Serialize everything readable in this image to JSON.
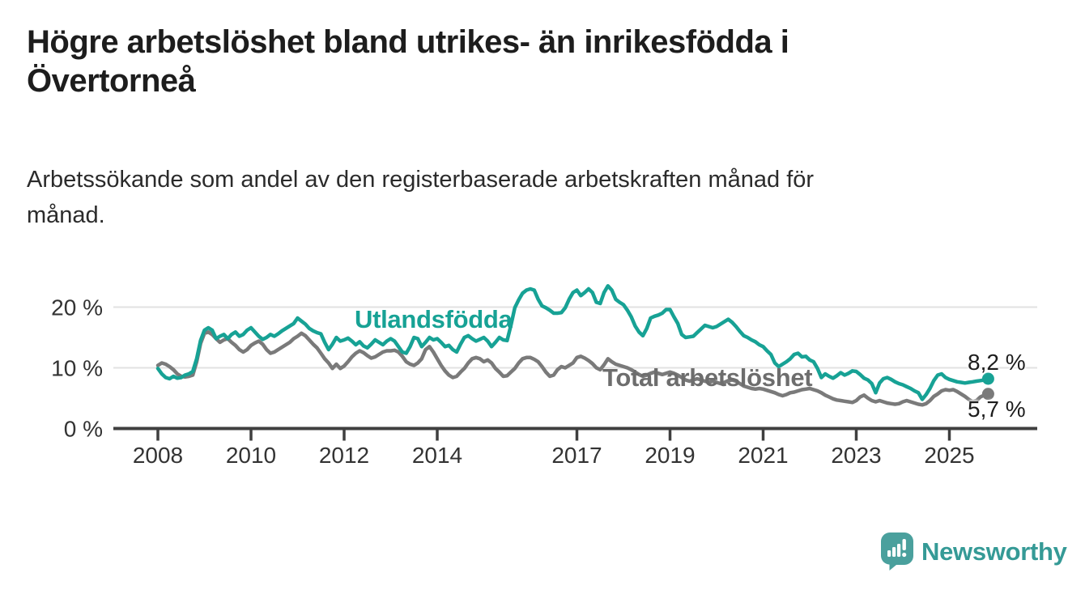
{
  "header": {
    "title": "Högre arbetslöshet bland utrikes- än inrikesfödda i Övertorneå",
    "title_line1": "Högre arbetslöshet bland utrikes- än inrikesfödda i",
    "title_line2": "Övertorneå",
    "subtitle": "Arbetssökande som andel av den registerbaserade arbetskraften månad för månad.",
    "subtitle_line1": "Arbetssökande som andel av den registerbaserade arbetskraften månad för",
    "subtitle_line2": "månad."
  },
  "branding": {
    "logo_text": "Newsworthy",
    "logo_icon": "newsworthy-speech-bubble-bar-chart-icon",
    "logo_icon_color": "#4aa09d",
    "logo_text_color": "#359a96"
  },
  "chart_data": {
    "type": "line",
    "unit": "%",
    "grid": "horizontal",
    "legend_position": "inline-labels",
    "x_start": {
      "year": 2008,
      "month": 1
    },
    "x_end": {
      "year": 2025,
      "month": 11
    },
    "x_tick_labels": [
      "2008",
      "2010",
      "2012",
      "2014",
      "2017",
      "2019",
      "2021",
      "2023",
      "2025"
    ],
    "x_tick_years": [
      2008,
      2010,
      2012,
      2014,
      2017,
      2019,
      2021,
      2023,
      2025
    ],
    "y_ticks": [
      {
        "value": 0,
        "label": "0 %"
      },
      {
        "value": 10,
        "label": "10 %"
      },
      {
        "value": 20,
        "label": "20 %"
      }
    ],
    "ylim": [
      0,
      25
    ],
    "colors": {
      "axis": "#3f3f3f",
      "grid": "#e2e2e2",
      "tick_text": "#333333"
    },
    "series": [
      {
        "name": "Utlandsfödda",
        "color": "#17a295",
        "end_label": "8,2 %",
        "end_value": 8.2,
        "values": [
          9.9,
          9.0,
          8.4,
          8.2,
          8.6,
          8.3,
          8.4,
          8.8,
          9.0,
          9.4,
          11.5,
          14.5,
          16.2,
          16.6,
          16.2,
          14.8,
          15.2,
          15.5,
          14.8,
          15.5,
          15.9,
          15.2,
          15.5,
          16.2,
          16.6,
          15.9,
          15.2,
          14.7,
          15.0,
          15.5,
          15.2,
          15.6,
          16.1,
          16.5,
          16.9,
          17.3,
          18.2,
          17.7,
          17.2,
          16.5,
          16.1,
          15.8,
          15.6,
          14.2,
          13.0,
          13.9,
          15.0,
          14.4,
          14.6,
          14.9,
          14.4,
          13.8,
          14.3,
          13.6,
          13.3,
          13.9,
          14.6,
          14.2,
          13.8,
          14.4,
          14.8,
          14.4,
          13.5,
          12.6,
          12.4,
          13.5,
          15.0,
          14.8,
          13.5,
          14.2,
          15.0,
          14.6,
          14.8,
          14.2,
          13.5,
          13.7,
          13.0,
          12.6,
          13.9,
          15.0,
          15.3,
          14.8,
          14.4,
          14.7,
          15.0,
          14.4,
          13.5,
          14.2,
          15.0,
          14.6,
          14.5,
          17.0,
          19.9,
          21.2,
          22.3,
          22.8,
          23.0,
          22.8,
          21.3,
          20.2,
          19.9,
          19.5,
          19.0,
          19.0,
          19.1,
          19.9,
          21.3,
          22.4,
          22.8,
          21.9,
          22.4,
          23.0,
          22.4,
          20.8,
          20.6,
          22.4,
          23.5,
          22.8,
          21.3,
          20.8,
          20.4,
          19.5,
          18.4,
          16.9,
          15.9,
          15.3,
          16.5,
          18.2,
          18.5,
          18.7,
          19.0,
          19.6,
          19.6,
          18.4,
          17.3,
          15.5,
          15.0,
          15.1,
          15.2,
          15.8,
          16.4,
          17.0,
          16.8,
          16.6,
          16.8,
          17.2,
          17.6,
          18.0,
          17.5,
          16.8,
          16.0,
          15.3,
          15.0,
          14.6,
          14.3,
          13.8,
          13.5,
          12.8,
          12.2,
          10.8,
          10.2,
          10.6,
          11.0,
          11.5,
          12.2,
          12.4,
          11.8,
          11.9,
          11.3,
          11.0,
          9.9,
          8.4,
          9.0,
          8.6,
          8.3,
          8.7,
          9.2,
          8.8,
          9.1,
          9.5,
          9.4,
          8.9,
          8.3,
          8.0,
          7.4,
          5.9,
          7.5,
          8.2,
          8.4,
          8.1,
          7.7,
          7.4,
          7.2,
          6.9,
          6.6,
          6.2,
          5.9,
          4.8,
          5.6,
          6.6,
          7.9,
          8.8,
          9.0,
          8.4,
          8.1,
          7.9,
          7.7,
          7.6,
          7.5,
          7.6,
          7.7,
          7.8,
          7.9,
          8.0,
          8.2
        ]
      },
      {
        "name": "Total arbetslöshet",
        "color": "#7a7a7a",
        "end_label": "5,7 %",
        "end_value": 5.7,
        "values": [
          10.4,
          10.8,
          10.6,
          10.2,
          9.7,
          9.0,
          8.6,
          8.5,
          8.6,
          8.8,
          11.0,
          14.0,
          15.7,
          15.9,
          15.5,
          14.8,
          14.2,
          14.6,
          14.8,
          14.2,
          13.7,
          13.0,
          12.6,
          13.0,
          13.7,
          14.1,
          14.4,
          13.9,
          13.0,
          12.4,
          12.6,
          13.0,
          13.4,
          13.8,
          14.2,
          14.8,
          15.2,
          15.7,
          15.3,
          14.6,
          13.9,
          13.3,
          12.4,
          11.5,
          10.8,
          9.9,
          10.6,
          9.9,
          10.3,
          11.0,
          11.8,
          12.4,
          12.8,
          12.5,
          12.0,
          11.6,
          11.8,
          12.2,
          12.6,
          12.8,
          12.8,
          12.9,
          12.6,
          11.9,
          11.0,
          10.6,
          10.4,
          10.8,
          11.5,
          13.0,
          13.5,
          12.6,
          11.5,
          10.4,
          9.5,
          8.8,
          8.4,
          8.6,
          9.3,
          9.9,
          10.8,
          11.5,
          11.7,
          11.5,
          11.0,
          11.3,
          10.8,
          9.9,
          9.3,
          8.6,
          8.7,
          9.3,
          9.9,
          10.8,
          11.5,
          11.7,
          11.7,
          11.4,
          11.0,
          10.2,
          9.3,
          8.6,
          8.8,
          9.7,
          10.2,
          10.0,
          10.4,
          10.8,
          11.7,
          11.9,
          11.6,
          11.2,
          10.7,
          10.0,
          9.7,
          10.5,
          11.5,
          11.0,
          10.6,
          10.4,
          10.2,
          10.0,
          9.7,
          9.3,
          8.9,
          8.6,
          8.8,
          9.1,
          9.3,
          9.1,
          8.9,
          9.1,
          9.3,
          9.1,
          8.8,
          8.4,
          8.0,
          7.8,
          8.0,
          8.2,
          8.0,
          7.8,
          7.6,
          7.8,
          7.6,
          7.4,
          7.6,
          7.9,
          8.0,
          7.8,
          7.4,
          7.0,
          6.8,
          6.6,
          6.5,
          6.6,
          6.5,
          6.3,
          6.1,
          5.9,
          5.6,
          5.4,
          5.6,
          5.9,
          6.0,
          6.2,
          6.4,
          6.5,
          6.6,
          6.4,
          6.2,
          5.9,
          5.5,
          5.2,
          4.9,
          4.7,
          4.6,
          4.5,
          4.4,
          4.3,
          4.6,
          5.2,
          5.5,
          5.0,
          4.6,
          4.4,
          4.6,
          4.4,
          4.2,
          4.1,
          4.0,
          4.1,
          4.4,
          4.6,
          4.4,
          4.2,
          4.0,
          3.9,
          4.1,
          4.6,
          5.3,
          5.7,
          6.2,
          6.4,
          6.3,
          6.4,
          6.1,
          5.7,
          5.3,
          4.8,
          4.4,
          4.6,
          5.2,
          5.5,
          5.7
        ]
      }
    ]
  }
}
